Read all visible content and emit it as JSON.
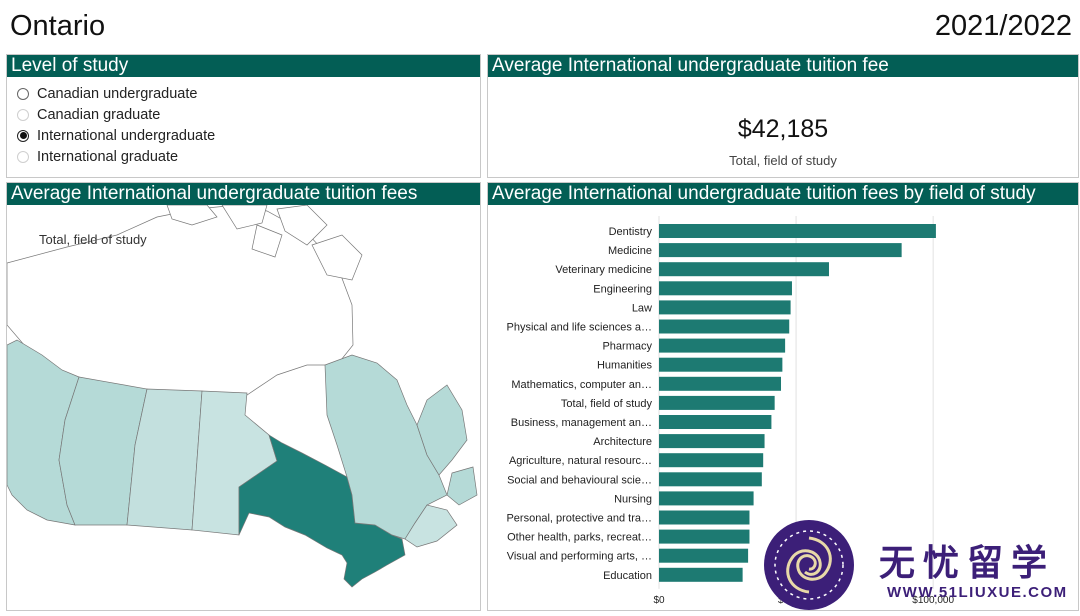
{
  "header": {
    "region": "Ontario",
    "year": "2021/2022"
  },
  "level_panel": {
    "title": "Level of study",
    "options": [
      {
        "label": "Canadian undergraduate",
        "state": "unselected"
      },
      {
        "label": "Canadian graduate",
        "state": "disabled"
      },
      {
        "label": "International undergraduate",
        "state": "selected"
      },
      {
        "label": "International graduate",
        "state": "disabled"
      }
    ]
  },
  "fee_panel": {
    "title": "Average International undergraduate tuition fee",
    "value": "$42,185",
    "label": "Total, field of study"
  },
  "map_panel": {
    "title": "Average International undergraduate tuition fees",
    "label": "Total, field of study",
    "colors": {
      "highlight": "#1f8079",
      "light": "#b5dad7",
      "lighter": "#c8e3e1",
      "none": "#ffffff",
      "border": "#777777"
    }
  },
  "chart_panel": {
    "title": "Average International undergraduate tuition fees by field of study"
  },
  "chart_data": {
    "type": "bar",
    "orientation": "horizontal",
    "title": "Average International undergraduate tuition fees by field of study",
    "categories": [
      "Dentistry",
      "Medicine",
      "Veterinary medicine",
      "Engineering",
      "Law",
      "Physical and life sciences a…",
      "Pharmacy",
      "Humanities",
      "Mathematics, computer an…",
      "Total, field of study",
      "Business, management an…",
      "Architecture",
      "Agriculture, natural resourc…",
      "Social and behavioural scie…",
      "Nursing",
      "Personal, protective and tra…",
      "Other health, parks, recreat…",
      "Visual and performing arts, …",
      "Education"
    ],
    "values": [
      101000,
      88500,
      62000,
      48500,
      48000,
      47500,
      46000,
      45000,
      44500,
      42185,
      41000,
      38500,
      38000,
      37500,
      34500,
      33000,
      33000,
      32500,
      30500
    ],
    "xlim": [
      0,
      120000
    ],
    "xticks": [
      {
        "value": 0,
        "label": "$0"
      },
      {
        "value": 50000,
        "label": "$50,000"
      },
      {
        "value": 100000,
        "label": "$100,000"
      }
    ],
    "bar_color": "#1d7a72",
    "grid": true
  },
  "watermark": {
    "title": "无忧留学",
    "url": "WWW.51LIUXUE.COM"
  }
}
